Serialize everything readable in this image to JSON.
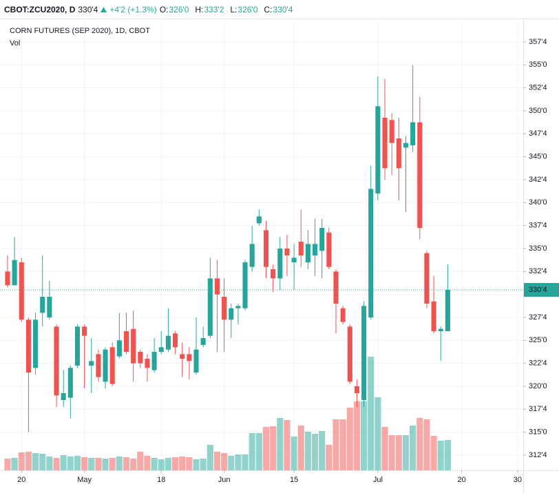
{
  "chart_data": {
    "type": "candlestick",
    "header": {
      "symbol": "CBOT:ZCU2020, D",
      "last": "330'4",
      "change": "+4'2 (+1.3%)",
      "ohlc": [
        {
          "key": "O:",
          "value": "326'0"
        },
        {
          "key": "H:",
          "value": "333'2"
        },
        {
          "key": "L:",
          "value": "326'0"
        },
        {
          "key": "C:",
          "value": "330'4"
        }
      ]
    },
    "title": "CORN FUTURES (SEP 2020), 1D, CBOT",
    "volume_label": "Vol",
    "up_color": "#26a69a",
    "down_color": "#ef5350",
    "open": [
      332.5,
      331,
      333.5,
      327.25,
      322,
      328,
      327.5,
      326.5,
      318.5,
      318.75,
      322.25,
      326.5,
      322.25,
      323.5,
      320.5,
      324.25,
      323.25,
      326,
      326.25,
      323.75,
      323,
      321.75,
      323.75,
      324,
      325.75,
      323.5,
      323.5,
      321.5,
      324.5,
      325.5,
      331.75,
      329.75,
      327.25,
      328.5,
      328.5,
      333,
      337.75,
      337,
      332.75,
      331.75,
      335,
      333.5,
      335.75,
      333.5,
      334.25,
      334.75,
      336.75,
      332.5,
      328.5,
      326.5,
      320,
      318.5,
      327.5,
      341,
      349.25,
      349,
      347,
      346,
      346.25,
      348.75,
      334.5,
      329.25,
      326,
      326
    ],
    "high": [
      334.25,
      336.25,
      334,
      327.5,
      328,
      334.25,
      331.5,
      326.75,
      321.75,
      322.25,
      326.75,
      326.75,
      325.25,
      324,
      324.25,
      324.75,
      328,
      328,
      328.25,
      324,
      323.5,
      325.25,
      326,
      328.5,
      326,
      324.75,
      324.25,
      327.5,
      326.5,
      334,
      333.75,
      331.75,
      329,
      329,
      333.75,
      337.5,
      339.25,
      338,
      333.25,
      336.25,
      336.5,
      335.5,
      339.25,
      337,
      338.25,
      338.25,
      337.25,
      332.75,
      328.75,
      326.75,
      320.75,
      329.25,
      344,
      353.75,
      353.5,
      349.75,
      349.25,
      347.25,
      355,
      351.5,
      334.75,
      332,
      326.5,
      333.25
    ],
    "low": [
      330.75,
      331,
      327,
      315,
      321.25,
      326.5,
      327.25,
      317.75,
      317.75,
      316.5,
      322,
      319.75,
      319.25,
      320.5,
      319.75,
      320,
      323,
      323.5,
      320.5,
      322,
      320.5,
      321.5,
      323.5,
      323.75,
      323.5,
      321,
      320.75,
      321.25,
      324.25,
      325.25,
      323.75,
      323.75,
      325.25,
      326.75,
      328.25,
      332.5,
      337.5,
      331.75,
      330.25,
      330.5,
      332,
      330.5,
      333,
      332.75,
      332,
      331.75,
      332.75,
      325.75,
      326.75,
      320.25,
      317.75,
      317.75,
      327.25,
      340.25,
      342.5,
      343,
      340.25,
      339,
      345.5,
      336,
      328.5,
      325.75,
      322.75,
      326
    ],
    "close": [
      331,
      333.75,
      327.25,
      321.5,
      327.25,
      329.75,
      329.75,
      319,
      319.25,
      322,
      326.5,
      325.5,
      322.75,
      321,
      324,
      320.25,
      325,
      323.75,
      322.5,
      322.5,
      322,
      323.75,
      324.25,
      325.5,
      324.25,
      323,
      322.75,
      324,
      325.25,
      331.75,
      330,
      327.25,
      328.5,
      328.75,
      333.5,
      335.5,
      338.5,
      333,
      331.75,
      335,
      334.25,
      334,
      334.25,
      335.5,
      335.5,
      337.25,
      333,
      329,
      327,
      320.5,
      319.25,
      328.75,
      341.5,
      350.5,
      343.75,
      346.5,
      343.75,
      346.5,
      348.75,
      337.25,
      329,
      326,
      326.25,
      330.5
    ],
    "volume": [
      17,
      18,
      26,
      27,
      25,
      24,
      20,
      18,
      22,
      20,
      21,
      19,
      18,
      18,
      17,
      18,
      20,
      19,
      17,
      27,
      21,
      18,
      16,
      18,
      19,
      20,
      19,
      16,
      17,
      37,
      27,
      25,
      21,
      23,
      23,
      54,
      54,
      63,
      64,
      76,
      73,
      49,
      65,
      56,
      53,
      57,
      37,
      74,
      74,
      91,
      100,
      100,
      165,
      106,
      63,
      51,
      51,
      51,
      65,
      76,
      74,
      50,
      43,
      44
    ],
    "ylim": [
      310.85,
      359.9
    ],
    "yticks": [
      {
        "value": 312.5,
        "label": "312'4"
      },
      {
        "value": 315,
        "label": "315'0"
      },
      {
        "value": 317.5,
        "label": "317'4"
      },
      {
        "value": 320,
        "label": "320'0"
      },
      {
        "value": 322.5,
        "label": "322'4"
      },
      {
        "value": 325,
        "label": "325'0"
      },
      {
        "value": 327.5,
        "label": "327'4"
      },
      {
        "value": 330,
        "label": "330'0"
      },
      {
        "value": 332.5,
        "label": "332'4"
      },
      {
        "value": 335,
        "label": "335'0"
      },
      {
        "value": 337.5,
        "label": "337'4"
      },
      {
        "value": 340,
        "label": "340'0"
      },
      {
        "value": 342.5,
        "label": "342'4"
      },
      {
        "value": 345,
        "label": "345'0"
      },
      {
        "value": 347.5,
        "label": "347'4"
      },
      {
        "value": 350,
        "label": "350'0"
      },
      {
        "value": 352.5,
        "label": "352'4"
      },
      {
        "value": 355,
        "label": "355'0"
      },
      {
        "value": 357.5,
        "label": "357'4"
      }
    ],
    "xlim": [
      -1.08,
      73.8
    ],
    "xticks": [
      {
        "value": 2,
        "label": "20"
      },
      {
        "value": 11,
        "label": "May"
      },
      {
        "value": 22,
        "label": "18"
      },
      {
        "value": 31,
        "label": "Jun"
      },
      {
        "value": 41,
        "label": "15"
      },
      {
        "value": 53,
        "label": "Jul"
      },
      {
        "value": 65,
        "label": "20"
      },
      {
        "value": 73,
        "label": "30"
      }
    ],
    "last_price": {
      "value": 330.5,
      "label": "330'4"
    },
    "grid": true
  }
}
